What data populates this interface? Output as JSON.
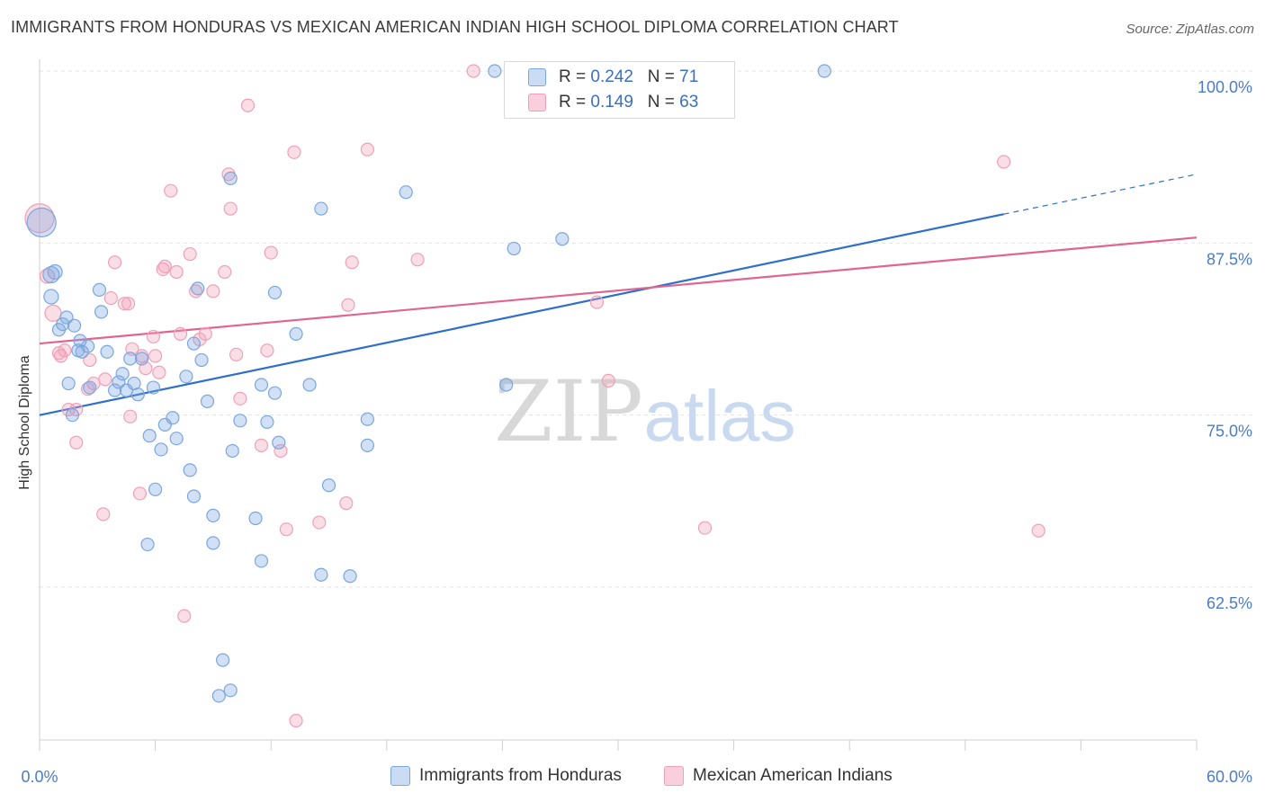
{
  "title": "IMMIGRANTS FROM HONDURAS VS MEXICAN AMERICAN INDIAN HIGH SCHOOL DIPLOMA CORRELATION CHART",
  "source": "Source: ZipAtlas.com",
  "watermark": {
    "zip": "ZIP",
    "atlas": "atlas"
  },
  "legend": {
    "series1": {
      "r_label": "R = ",
      "r_value": "0.242",
      "n_label": "N = ",
      "n_value": "71"
    },
    "series2": {
      "r_label": "R = ",
      "r_value": "0.149",
      "n_label": "N = ",
      "n_value": "63"
    }
  },
  "chart_data": {
    "type": "scatter",
    "title": "IMMIGRANTS FROM HONDURAS VS MEXICAN AMERICAN INDIAN HIGH SCHOOL DIPLOMA CORRELATION CHART",
    "xlabel": "",
    "ylabel": "High School Diploma",
    "xlim": [
      0,
      60
    ],
    "ylim": [
      51,
      102
    ],
    "x_tick_labels": [
      "0.0%",
      "60.0%"
    ],
    "y_ticks": [
      62.5,
      75.0,
      87.5,
      100.0
    ],
    "y_tick_labels": [
      "62.5%",
      "75.0%",
      "87.5%",
      "100.0%"
    ],
    "grid": true,
    "colors": {
      "blue": "#7aa7e0",
      "blue_line": "#2f6fcc",
      "pink": "#f0a0b8",
      "pink_line": "#e0658f",
      "tick_label": "#4a7cc7"
    },
    "series": [
      {
        "name": "Immigrants from Honduras",
        "color": "#7aa7e0",
        "trend": {
          "x": [
            0,
            50
          ],
          "y": [
            75.0,
            89.6
          ],
          "dashed_to": [
            60,
            92.5
          ]
        },
        "points": [
          [
            0.1,
            89.0,
            16
          ],
          [
            0.6,
            85.2,
            9
          ],
          [
            0.8,
            85.4,
            8
          ],
          [
            0.6,
            83.6,
            8
          ],
          [
            1.2,
            81.6,
            7
          ],
          [
            1.0,
            81.2,
            7
          ],
          [
            1.4,
            82.1,
            7
          ],
          [
            1.8,
            81.5,
            7
          ],
          [
            2.1,
            80.4,
            7
          ],
          [
            2.2,
            79.6,
            7
          ],
          [
            2.0,
            79.7,
            7
          ],
          [
            3.2,
            82.5,
            7
          ],
          [
            3.1,
            84.1,
            7
          ],
          [
            3.5,
            79.6,
            7
          ],
          [
            2.6,
            77.0,
            7
          ],
          [
            4.1,
            77.4,
            7
          ],
          [
            3.9,
            76.8,
            7
          ],
          [
            4.5,
            76.8,
            7
          ],
          [
            4.9,
            77.3,
            7
          ],
          [
            4.7,
            79.1,
            7
          ],
          [
            5.3,
            79.1,
            7
          ],
          [
            5.9,
            77.0,
            7
          ],
          [
            6.3,
            72.5,
            7
          ],
          [
            6.5,
            74.3,
            7
          ],
          [
            6.9,
            74.8,
            7
          ],
          [
            7.1,
            73.3,
            7
          ],
          [
            7.6,
            77.8,
            7
          ],
          [
            7.8,
            71.0,
            7
          ],
          [
            8.0,
            69.1,
            7
          ],
          [
            8.0,
            80.2,
            7
          ],
          [
            8.2,
            84.2,
            7
          ],
          [
            8.4,
            79.0,
            7
          ],
          [
            8.7,
            76.0,
            7
          ],
          [
            9.0,
            67.7,
            7
          ],
          [
            9.0,
            65.7,
            7
          ],
          [
            9.9,
            92.2,
            7
          ],
          [
            10.0,
            72.4,
            7
          ],
          [
            10.4,
            74.6,
            7
          ],
          [
            11.2,
            67.5,
            7
          ],
          [
            11.5,
            77.2,
            7
          ],
          [
            11.5,
            64.4,
            7
          ],
          [
            11.8,
            74.5,
            7
          ],
          [
            12.2,
            83.9,
            7
          ],
          [
            12.2,
            76.6,
            7
          ],
          [
            12.4,
            73.0,
            7
          ],
          [
            13.3,
            80.9,
            7
          ],
          [
            14.0,
            77.2,
            7
          ],
          [
            14.6,
            90.0,
            7
          ],
          [
            14.6,
            63.4,
            7
          ],
          [
            15.0,
            69.9,
            7
          ],
          [
            16.1,
            63.3,
            7
          ],
          [
            17.0,
            74.7,
            7
          ],
          [
            17.0,
            72.8,
            7
          ],
          [
            19.0,
            91.2,
            7
          ],
          [
            23.6,
            100.0,
            7
          ],
          [
            24.2,
            77.2,
            7
          ],
          [
            24.6,
            87.1,
            7
          ],
          [
            27.1,
            87.8,
            7
          ],
          [
            28.2,
            100.0,
            7
          ],
          [
            40.7,
            100.0,
            7
          ],
          [
            5.1,
            76.5,
            7
          ],
          [
            5.7,
            73.5,
            7
          ],
          [
            6.0,
            69.6,
            7
          ],
          [
            5.6,
            65.6,
            7
          ],
          [
            9.5,
            57.2,
            7
          ],
          [
            9.3,
            54.6,
            7
          ],
          [
            9.9,
            55.0,
            7
          ],
          [
            4.3,
            78.0,
            7
          ],
          [
            2.5,
            80.0,
            7
          ],
          [
            1.5,
            77.3,
            7
          ],
          [
            1.7,
            75.0,
            7
          ]
        ]
      },
      {
        "name": "Mexican American Indians",
        "color": "#f0a0b8",
        "trend": {
          "x": [
            0,
            60
          ],
          "y": [
            80.2,
            87.9
          ]
        },
        "points": [
          [
            0.0,
            89.3,
            16
          ],
          [
            0.4,
            85.1,
            8
          ],
          [
            0.7,
            82.4,
            9
          ],
          [
            1.0,
            79.5,
            7
          ],
          [
            1.1,
            79.3,
            7
          ],
          [
            1.3,
            79.7,
            7
          ],
          [
            1.5,
            75.4,
            7
          ],
          [
            1.9,
            75.4,
            7
          ],
          [
            1.9,
            73.0,
            7
          ],
          [
            2.5,
            76.9,
            7
          ],
          [
            2.6,
            79.0,
            7
          ],
          [
            3.3,
            67.8,
            7
          ],
          [
            3.4,
            77.6,
            7
          ],
          [
            3.7,
            83.5,
            7
          ],
          [
            3.9,
            86.1,
            7
          ],
          [
            4.4,
            83.1,
            7
          ],
          [
            4.6,
            83.1,
            7
          ],
          [
            4.7,
            74.9,
            7
          ],
          [
            4.8,
            79.8,
            7
          ],
          [
            5.2,
            69.3,
            7
          ],
          [
            5.3,
            79.3,
            7
          ],
          [
            5.5,
            78.4,
            7
          ],
          [
            5.9,
            80.7,
            7
          ],
          [
            6.0,
            79.3,
            7
          ],
          [
            6.4,
            85.6,
            7
          ],
          [
            6.5,
            85.8,
            7
          ],
          [
            6.8,
            91.3,
            7
          ],
          [
            7.1,
            85.4,
            7
          ],
          [
            7.3,
            80.9,
            7
          ],
          [
            7.5,
            60.4,
            7
          ],
          [
            7.8,
            86.7,
            7
          ],
          [
            8.1,
            84.0,
            7
          ],
          [
            8.3,
            80.5,
            7
          ],
          [
            8.6,
            80.9,
            7
          ],
          [
            9.0,
            84.0,
            7
          ],
          [
            9.6,
            85.4,
            7
          ],
          [
            9.8,
            92.5,
            7
          ],
          [
            9.9,
            90.0,
            7
          ],
          [
            10.2,
            79.4,
            7
          ],
          [
            10.4,
            76.2,
            7
          ],
          [
            10.8,
            97.5,
            7
          ],
          [
            11.5,
            72.8,
            7
          ],
          [
            11.8,
            79.7,
            7
          ],
          [
            12.0,
            86.8,
            7
          ],
          [
            12.5,
            72.4,
            7
          ],
          [
            12.8,
            66.7,
            7
          ],
          [
            13.2,
            94.1,
            7
          ],
          [
            13.3,
            52.8,
            7
          ],
          [
            14.5,
            67.2,
            7
          ],
          [
            15.9,
            68.6,
            7
          ],
          [
            16.0,
            83.0,
            7
          ],
          [
            16.2,
            86.1,
            7
          ],
          [
            17.0,
            94.3,
            7
          ],
          [
            19.6,
            86.3,
            7
          ],
          [
            22.5,
            100.0,
            7
          ],
          [
            28.7,
            100.0,
            7
          ],
          [
            28.9,
            83.2,
            7
          ],
          [
            29.5,
            77.5,
            7
          ],
          [
            34.5,
            66.8,
            7
          ],
          [
            50.0,
            93.4,
            7
          ],
          [
            51.8,
            66.6,
            7
          ],
          [
            2.8,
            77.3,
            7
          ],
          [
            6.2,
            78.1,
            7
          ]
        ]
      }
    ]
  },
  "bottom_legend": {
    "series1": "Immigrants from Honduras",
    "series2": "Mexican American Indians"
  }
}
